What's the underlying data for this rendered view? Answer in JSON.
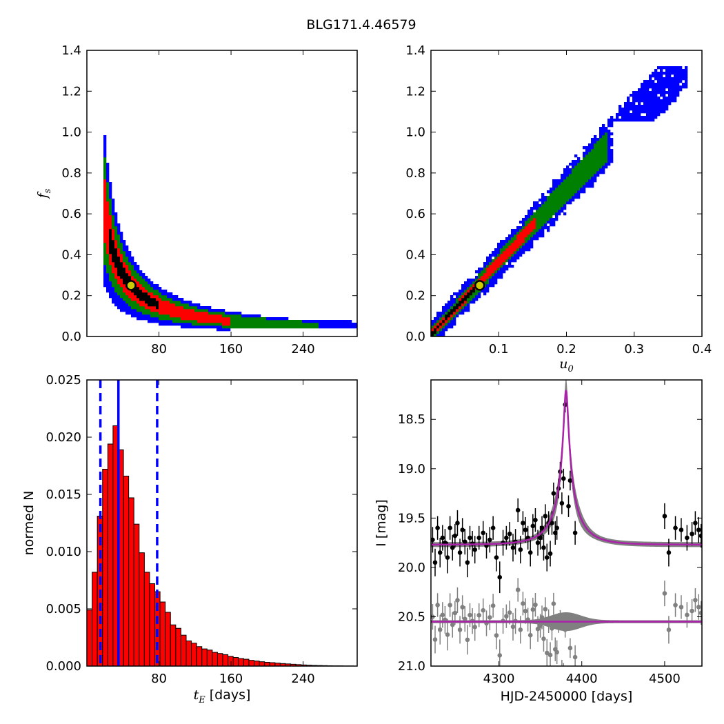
{
  "figure": {
    "title": "BLG171.4.46579"
  },
  "colors": {
    "sigma1": "#000000",
    "sigma2": "#ff0000",
    "sigma3": "#008000",
    "sigma4": "#0000ff",
    "best_fit": "#cccc00",
    "model": "#aa22aa",
    "model_band": "#808080"
  },
  "chart_data": [
    {
      "id": "tE_fs",
      "type": "heatmap",
      "xlabel_main": "",
      "xlabel_sub": "",
      "ylabel_main": "f",
      "ylabel_sub": "s",
      "xlim": [
        0,
        300
      ],
      "ylim": [
        0,
        1.4
      ],
      "xticks": [
        80,
        160,
        240
      ],
      "xtick_labels": [
        "80",
        "160",
        "240"
      ],
      "yticks": [
        0.0,
        0.2,
        0.4,
        0.6,
        0.8,
        1.0,
        1.2,
        1.4
      ],
      "ytick_labels": [
        "0.0",
        "0.2",
        "0.4",
        "0.6",
        "0.8",
        "1.0",
        "1.2",
        "1.4"
      ],
      "curve": {
        "model": "fs = 12.25 / tE",
        "x_min": 17,
        "x_max": 300
      },
      "band_widths": [
        0.012,
        0.03,
        0.055,
        0.085
      ],
      "best_fit": {
        "x": 49,
        "y": 0.25
      }
    },
    {
      "id": "u0_fs",
      "type": "heatmap",
      "xlabel_main": "u",
      "xlabel_sub": "0",
      "xlim": [
        0,
        0.4
      ],
      "ylim": [
        0,
        1.4
      ],
      "xticks": [
        0.1,
        0.2,
        0.3,
        0.4
      ],
      "xtick_labels": [
        "0.1",
        "0.2",
        "0.3",
        "0.4"
      ],
      "yticks": [
        0.0,
        0.2,
        0.4,
        0.6,
        0.8,
        1.0,
        1.2,
        1.4
      ],
      "ytick_labels": [
        "0.0",
        "0.2",
        "0.4",
        "0.6",
        "0.8",
        "1.0",
        "1.2",
        "1.4"
      ],
      "curve": {
        "model": "fs = 3.8 * u0",
        "x_min": 0,
        "x_max": 0.36
      },
      "band_widths": [
        0.012,
        0.03,
        0.055,
        0.085
      ],
      "extent": {
        "black_max": 0.065,
        "red_max": 0.155,
        "green_max": 0.26,
        "blue_max": 0.38
      },
      "best_fit": {
        "x": 0.072,
        "y": 0.25
      }
    },
    {
      "id": "tE_hist",
      "type": "bar",
      "xlabel_main": "t",
      "xlabel_sub": "E",
      "xlabel_rest": " [days]",
      "ylabel": "normed N",
      "xlim": [
        0,
        300
      ],
      "ylim": [
        0,
        0.025
      ],
      "xticks": [
        80,
        160,
        240
      ],
      "xtick_labels": [
        "80",
        "160",
        "240"
      ],
      "yticks": [
        0.0,
        0.005,
        0.01,
        0.015,
        0.02,
        0.025
      ],
      "ytick_labels": [
        "0.000",
        "0.005",
        "0.010",
        "0.015",
        "0.020",
        "0.025"
      ],
      "bin_width": 5.8,
      "bin_start": 0,
      "values": [
        0.0049,
        0.0082,
        0.0131,
        0.0172,
        0.0194,
        0.021,
        0.0189,
        0.0166,
        0.0147,
        0.0124,
        0.0099,
        0.0082,
        0.0072,
        0.0065,
        0.0056,
        0.0047,
        0.0036,
        0.0033,
        0.0027,
        0.0022,
        0.002,
        0.0017,
        0.0015,
        0.0014,
        0.0012,
        0.0011,
        0.001,
        0.00085,
        0.00075,
        0.00066,
        0.0006,
        0.0005,
        0.00044,
        0.00038,
        0.00033,
        0.0003,
        0.00026,
        0.00022,
        0.00019,
        0.00016,
        0.00013,
        0.0001,
        8e-05,
        6e-05,
        5e-05,
        4e-05,
        3e-05,
        2e-05,
        2e-05,
        1e-05,
        1e-05
      ],
      "median": 35,
      "percentiles": [
        15,
        78
      ]
    },
    {
      "id": "light_curve",
      "type": "scatter",
      "xlabel": "HJD-2450000 [days]",
      "ylabel": "I [mag]",
      "xlim": [
        4218,
        4545
      ],
      "ylim": [
        21.0,
        18.1
      ],
      "xticks": [
        4300,
        4400,
        4500
      ],
      "xtick_labels": [
        "4300",
        "4400",
        "4500"
      ],
      "yticks": [
        18.5,
        19.0,
        19.5,
        20.0,
        20.5,
        21.0
      ],
      "ytick_labels": [
        "18.5",
        "19.0",
        "19.5",
        "20.0",
        "20.5",
        "21.0"
      ],
      "model": {
        "t0": 4381,
        "tE": 35,
        "u0": 0.072,
        "fs": 0.25,
        "I_base": 19.77,
        "resid_offset": 20.55
      },
      "series": [
        {
          "t": [
            4220,
            4223,
            4226,
            4229,
            4232,
            4235,
            4238,
            4241,
            4244,
            4247,
            4250,
            4253,
            4256,
            4259,
            4262,
            4265,
            4268,
            4271,
            4276,
            4281,
            4285,
            4289,
            4293,
            4297,
            4301,
            4305,
            4309,
            4313,
            4317,
            4320,
            4323,
            4326,
            4329,
            4332,
            4335,
            4338,
            4341,
            4344,
            4347,
            4350,
            4352,
            4354,
            4356,
            4358,
            4360,
            4362,
            4364,
            4366,
            4368,
            4370,
            4372,
            4374,
            4376,
            4378,
            4380,
            4384,
            4386,
            4392,
            4500,
            4505,
            4513,
            4520,
            4527,
            4533,
            4537,
            4541,
            4544
          ],
          "mag": [
            19.72,
            19.95,
            19.6,
            19.85,
            19.7,
            19.75,
            19.9,
            19.6,
            19.8,
            19.68,
            19.55,
            19.85,
            19.62,
            19.74,
            19.95,
            19.7,
            19.76,
            19.82,
            19.7,
            19.65,
            19.78,
            19.72,
            19.6,
            19.9,
            20.1,
            19.75,
            19.7,
            19.66,
            19.8,
            19.74,
            19.42,
            19.82,
            19.55,
            19.62,
            19.7,
            19.85,
            19.58,
            19.52,
            19.75,
            19.7,
            19.6,
            19.8,
            19.48,
            19.9,
            19.55,
            19.86,
            19.55,
            19.25,
            19.65,
            19.6,
            19.2,
            19.03,
            19.35,
            19.1,
            18.35,
            19.38,
            19.12,
            19.65,
            19.48,
            19.85,
            19.6,
            19.62,
            19.7,
            19.66,
            19.55,
            19.62,
            19.68
          ],
          "err": [
            0.13,
            0.14,
            0.12,
            0.15,
            0.13,
            0.14,
            0.16,
            0.12,
            0.13,
            0.12,
            0.13,
            0.14,
            0.12,
            0.13,
            0.15,
            0.12,
            0.13,
            0.14,
            0.12,
            0.12,
            0.13,
            0.13,
            0.12,
            0.14,
            0.16,
            0.13,
            0.12,
            0.12,
            0.14,
            0.13,
            0.12,
            0.14,
            0.12,
            0.13,
            0.12,
            0.14,
            0.12,
            0.12,
            0.13,
            0.12,
            0.12,
            0.13,
            0.12,
            0.14,
            0.12,
            0.13,
            0.12,
            0.11,
            0.12,
            0.12,
            0.1,
            0.1,
            0.11,
            0.1,
            0.08,
            0.11,
            0.1,
            0.12,
            0.13,
            0.14,
            0.12,
            0.12,
            0.13,
            0.12,
            0.12,
            0.13,
            0.12
          ]
        }
      ]
    }
  ]
}
